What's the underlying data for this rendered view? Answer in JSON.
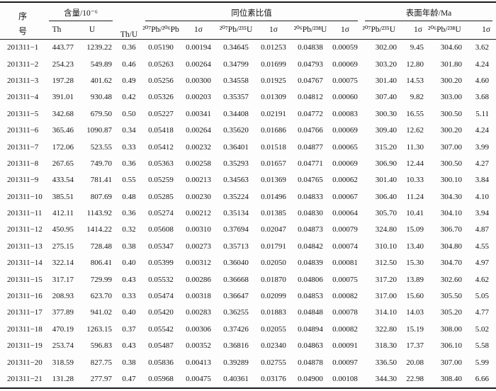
{
  "table": {
    "header": {
      "serial_line1": "序",
      "serial_line2": "号",
      "content_group": "含量/10⁻⁶",
      "thu": "Th/U",
      "isotope_group": "同位素比值",
      "age_group": "表面年龄/Ma",
      "subheaders": [
        "Th",
        "U",
        "²⁰⁷Pb/²⁰⁶Pb",
        "1σ",
        "²⁰⁷Pb/²³⁵U",
        "1σ",
        "²⁰⁶Pb/²³⁸U",
        "1σ",
        "²⁰⁷Pb/²³⁵U",
        "1σ",
        "²⁰⁶Pb/²³⁸U",
        "1σ"
      ]
    },
    "column_keys": [
      "serial",
      "th",
      "u",
      "th-u",
      "pb207-pb206",
      "sigma-pb207-pb206",
      "pb207-u235",
      "sigma-pb207-u235",
      "pb206-u238",
      "sigma-pb206-u238",
      "age-pb207-u235",
      "sigma-age-pb207-u235",
      "age-pb206-u238",
      "sigma-age-pb206-u238"
    ],
    "rows": [
      [
        "201311−1",
        "443.77",
        "1239.22",
        "0.36",
        "0.05190",
        "0.00194",
        "0.34645",
        "0.01253",
        "0.04838",
        "0.00059",
        "302.00",
        "9.45",
        "304.60",
        "3.62"
      ],
      [
        "201311−2",
        "254.23",
        "549.89",
        "0.46",
        "0.05263",
        "0.00264",
        "0.34799",
        "0.01699",
        "0.04793",
        "0.00069",
        "303.20",
        "12.80",
        "301.80",
        "4.24"
      ],
      [
        "201311−3",
        "197.28",
        "401.62",
        "0.49",
        "0.05256",
        "0.00300",
        "0.34558",
        "0.01925",
        "0.04767",
        "0.00075",
        "301.40",
        "14.53",
        "300.20",
        "4.60"
      ],
      [
        "201311−4",
        "391.01",
        "930.48",
        "0.42",
        "0.05326",
        "0.00203",
        "0.35357",
        "0.01309",
        "0.04812",
        "0.00060",
        "307.40",
        "9.82",
        "303.00",
        "3.68"
      ],
      [
        "201311−5",
        "342.68",
        "679.50",
        "0.50",
        "0.05227",
        "0.00341",
        "0.34408",
        "0.02191",
        "0.04772",
        "0.00083",
        "300.30",
        "16.55",
        "300.50",
        "5.11"
      ],
      [
        "201311−6",
        "365.46",
        "1090.87",
        "0.34",
        "0.05418",
        "0.00264",
        "0.35620",
        "0.01686",
        "0.04766",
        "0.00069",
        "309.40",
        "12.62",
        "300.20",
        "4.24"
      ],
      [
        "201311−7",
        "172.06",
        "523.55",
        "0.33",
        "0.05412",
        "0.00232",
        "0.36401",
        "0.01518",
        "0.04877",
        "0.00065",
        "315.20",
        "11.30",
        "307.00",
        "3.99"
      ],
      [
        "201311−8",
        "267.65",
        "749.70",
        "0.36",
        "0.05363",
        "0.00258",
        "0.35293",
        "0.01657",
        "0.04771",
        "0.00069",
        "306.90",
        "12.44",
        "300.50",
        "4.27"
      ],
      [
        "201311−9",
        "433.54",
        "781.41",
        "0.55",
        "0.05259",
        "0.00213",
        "0.34563",
        "0.01369",
        "0.04765",
        "0.00062",
        "301.40",
        "10.33",
        "300.10",
        "3.84"
      ],
      [
        "201311−10",
        "385.51",
        "807.69",
        "0.48",
        "0.05285",
        "0.00230",
        "0.35224",
        "0.01496",
        "0.04833",
        "0.00067",
        "306.40",
        "11.24",
        "304.30",
        "4.10"
      ],
      [
        "201311−11",
        "412.11",
        "1143.92",
        "0.36",
        "0.05274",
        "0.00212",
        "0.35134",
        "0.01385",
        "0.04830",
        "0.00064",
        "305.70",
        "10.41",
        "304.10",
        "3.94"
      ],
      [
        "201311−12",
        "450.95",
        "1414.22",
        "0.32",
        "0.05608",
        "0.00310",
        "0.37694",
        "0.02047",
        "0.04873",
        "0.00079",
        "324.80",
        "15.09",
        "306.70",
        "4.87"
      ],
      [
        "201311−13",
        "275.15",
        "728.48",
        "0.38",
        "0.05347",
        "0.00273",
        "0.35713",
        "0.01791",
        "0.04842",
        "0.00074",
        "310.10",
        "13.40",
        "304.80",
        "4.55"
      ],
      [
        "201311−14",
        "322.14",
        "806.41",
        "0.40",
        "0.05399",
        "0.00312",
        "0.36040",
        "0.02050",
        "0.04839",
        "0.00081",
        "312.50",
        "15.30",
        "304.70",
        "4.97"
      ],
      [
        "201311−15",
        "317.17",
        "729.99",
        "0.43",
        "0.05532",
        "0.00286",
        "0.36668",
        "0.01870",
        "0.04806",
        "0.00075",
        "317.20",
        "13.89",
        "302.60",
        "4.62"
      ],
      [
        "201311−16",
        "208.93",
        "623.70",
        "0.33",
        "0.05474",
        "0.00318",
        "0.36647",
        "0.02099",
        "0.04853",
        "0.00082",
        "317.00",
        "15.60",
        "305.50",
        "5.05"
      ],
      [
        "201311−17",
        "377.89",
        "941.02",
        "0.40",
        "0.05420",
        "0.00283",
        "0.36255",
        "0.01883",
        "0.04848",
        "0.00078",
        "314.10",
        "14.03",
        "305.20",
        "4.77"
      ],
      [
        "201311−18",
        "470.19",
        "1263.15",
        "0.37",
        "0.05542",
        "0.00306",
        "0.37426",
        "0.02055",
        "0.04894",
        "0.00082",
        "322.80",
        "15.19",
        "308.00",
        "5.02"
      ],
      [
        "201311−19",
        "253.74",
        "596.83",
        "0.43",
        "0.05487",
        "0.00352",
        "0.36816",
        "0.02340",
        "0.04863",
        "0.00091",
        "318.30",
        "17.37",
        "306.10",
        "5.58"
      ],
      [
        "201311−20",
        "318.59",
        "827.75",
        "0.38",
        "0.05836",
        "0.00413",
        "0.39289",
        "0.02755",
        "0.04878",
        "0.00097",
        "336.50",
        "20.08",
        "307.00",
        "5.99"
      ],
      [
        "201311−21",
        "131.28",
        "277.97",
        "0.47",
        "0.05968",
        "0.00475",
        "0.40361",
        "0.03176",
        "0.04900",
        "0.00108",
        "344.30",
        "22.98",
        "308.40",
        "6.66"
      ]
    ]
  }
}
